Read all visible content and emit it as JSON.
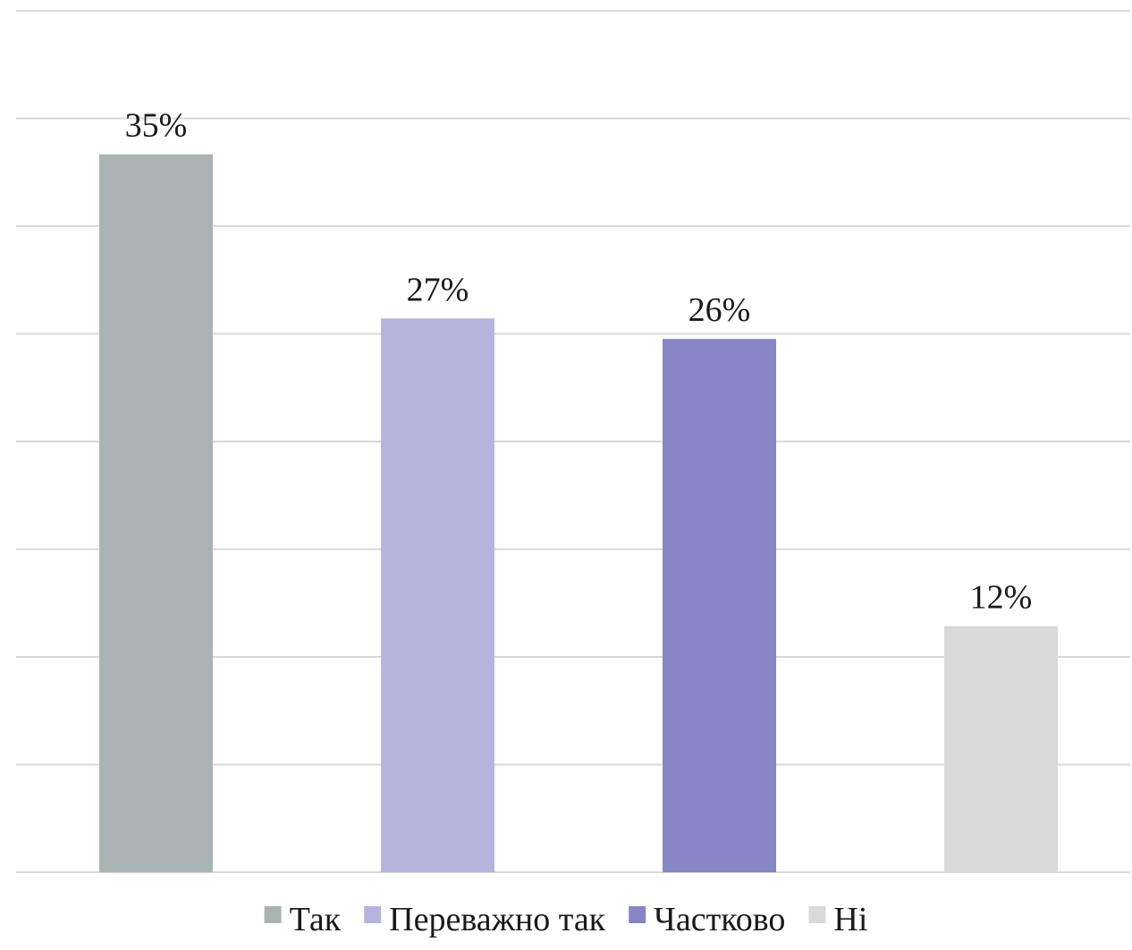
{
  "chart_data": {
    "type": "bar",
    "categories": [
      "Так",
      "Переважно так",
      "Частково",
      "Ні"
    ],
    "values": [
      35,
      27,
      26,
      12
    ],
    "value_labels": [
      "35%",
      "27%",
      "26%",
      "12%"
    ],
    "colors": [
      "#aab4b4",
      "#b6b4dc",
      "#8885c5",
      "#d9d9d9"
    ],
    "gridline_color": "#d9d9d9",
    "ylim": [
      0,
      35
    ],
    "grid": true,
    "legend": {
      "placement": "bottom",
      "entries": [
        "Так",
        "Переважно так",
        "Частково",
        "Ні"
      ]
    }
  }
}
